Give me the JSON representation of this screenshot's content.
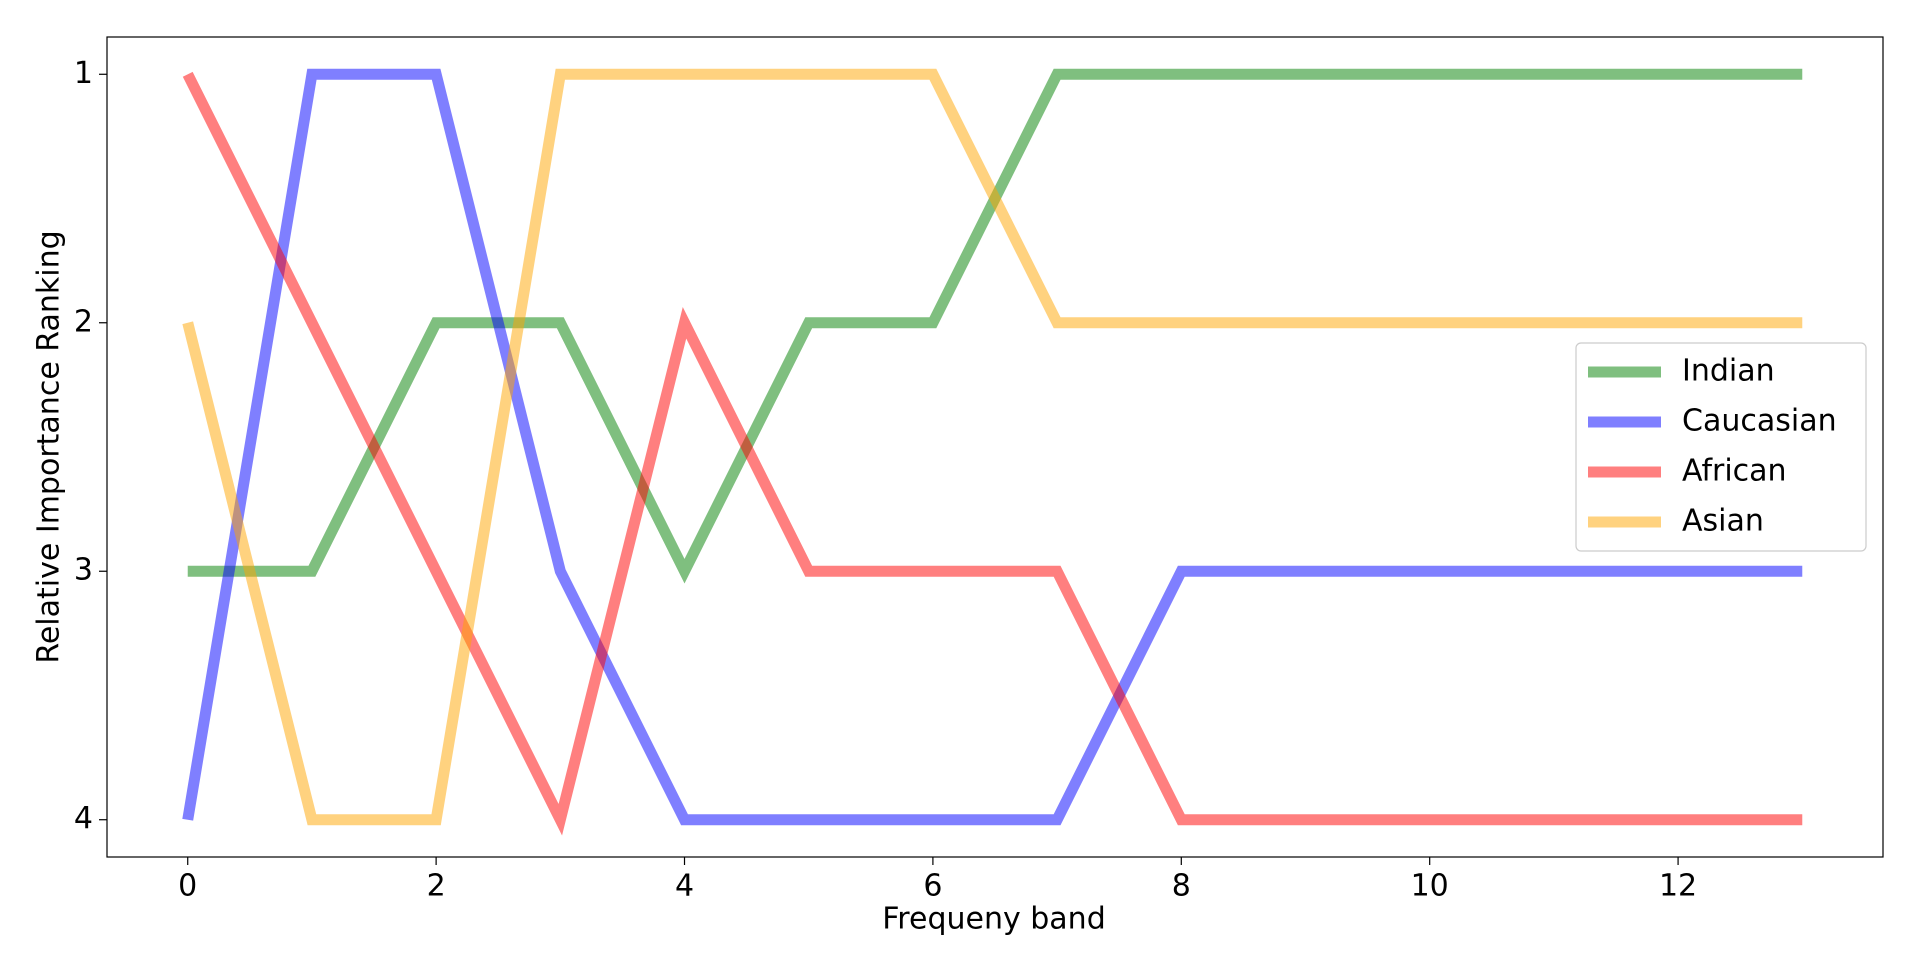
{
  "chart_data": {
    "type": "line",
    "xlabel": "Frequeny band",
    "ylabel": "Relative Importance Ranking",
    "x": [
      0,
      1,
      2,
      3,
      4,
      5,
      6,
      7,
      8,
      9,
      10,
      11,
      12,
      13
    ],
    "series": [
      {
        "name": "Indian",
        "color": "#008000",
        "values": [
          3,
          3,
          2,
          2,
          3,
          2,
          2,
          1,
          1,
          1,
          1,
          1,
          1,
          1
        ]
      },
      {
        "name": "Caucasian",
        "color": "#0000ff",
        "values": [
          4,
          1,
          1,
          3,
          4,
          4,
          4,
          4,
          3,
          3,
          3,
          3,
          3,
          3
        ]
      },
      {
        "name": "African",
        "color": "#ff0000",
        "values": [
          1,
          2,
          3,
          4,
          2,
          3,
          3,
          3,
          4,
          4,
          4,
          4,
          4,
          4
        ]
      },
      {
        "name": "Asian",
        "color": "#ffa500",
        "values": [
          2,
          4,
          4,
          1,
          1,
          1,
          1,
          2,
          2,
          2,
          2,
          2,
          2,
          2
        ]
      }
    ],
    "xlim": [
      -0.65,
      13.65
    ],
    "xticks": [
      0,
      2,
      4,
      6,
      8,
      10,
      12
    ],
    "ylim": [
      4.15,
      0.85
    ],
    "yticks": [
      1,
      2,
      3,
      4
    ],
    "legend": "center right"
  }
}
